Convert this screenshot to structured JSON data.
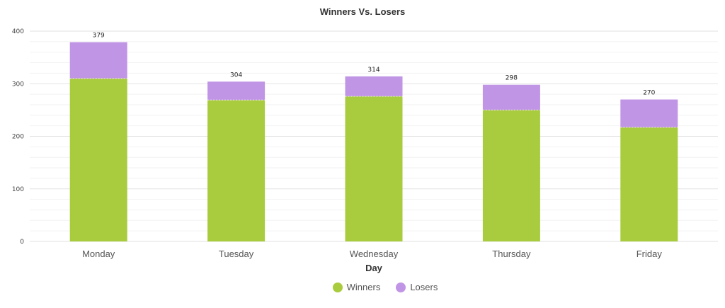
{
  "chart_data": {
    "type": "bar",
    "stacked": true,
    "title": "Winners Vs. Losers",
    "xlabel": "Day",
    "ylabel": "",
    "categories": [
      "Monday",
      "Tuesday",
      "Wednesday",
      "Thursday",
      "Friday"
    ],
    "series": [
      {
        "name": "Winners",
        "color": "#a9cc3e",
        "values": [
          310,
          269,
          276,
          250,
          217
        ]
      },
      {
        "name": "Losers",
        "color": "#c195e6",
        "values": [
          69,
          35,
          38,
          48,
          53
        ]
      }
    ],
    "totals": [
      379,
      304,
      314,
      298,
      270
    ],
    "ylim": [
      0,
      400
    ],
    "yticks": [
      0,
      100,
      200,
      300,
      400
    ],
    "grid": true,
    "legend_position": "bottom-center"
  }
}
